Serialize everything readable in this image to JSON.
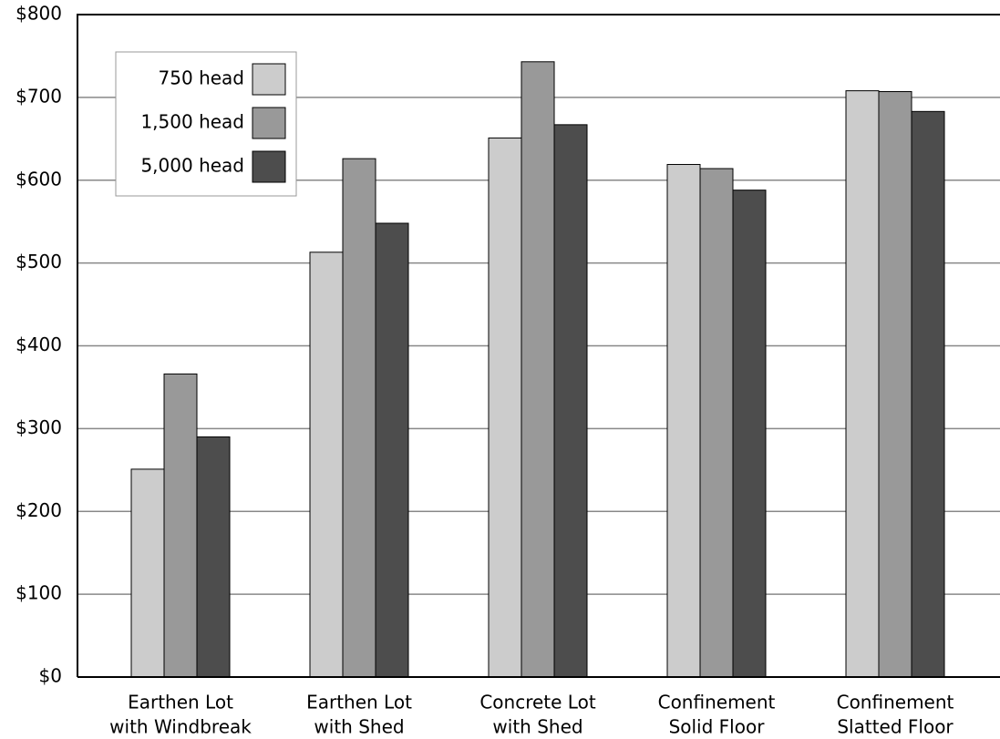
{
  "chart_data": {
    "type": "bar",
    "categories": [
      [
        "Earthen Lot",
        "with Windbreak"
      ],
      [
        "Earthen Lot",
        "with Shed"
      ],
      [
        "Concrete Lot",
        "with Shed"
      ],
      [
        "Confinement",
        "Solid Floor"
      ],
      [
        "Confinement",
        "Slatted Floor"
      ]
    ],
    "series": [
      {
        "name": "750 head",
        "color": "#cccccc",
        "values": [
          251,
          513,
          651,
          619,
          708
        ]
      },
      {
        "name": "1,500 head",
        "color": "#999999",
        "values": [
          366,
          626,
          743,
          614,
          707
        ]
      },
      {
        "name": "5,000 head",
        "color": "#4d4d4d",
        "values": [
          290,
          548,
          667,
          588,
          683
        ]
      }
    ],
    "ylim": [
      0,
      800
    ],
    "yticks": [
      {
        "value": 0,
        "label": "$0"
      },
      {
        "value": 100,
        "label": "$100"
      },
      {
        "value": 200,
        "label": "$200"
      },
      {
        "value": 300,
        "label": "$300"
      },
      {
        "value": 400,
        "label": "$400"
      },
      {
        "value": 500,
        "label": "$500"
      },
      {
        "value": 600,
        "label": "$600"
      },
      {
        "value": 700,
        "label": "$700"
      },
      {
        "value": 800,
        "label": "$800"
      }
    ],
    "grid": true,
    "legend": "upper-left"
  }
}
